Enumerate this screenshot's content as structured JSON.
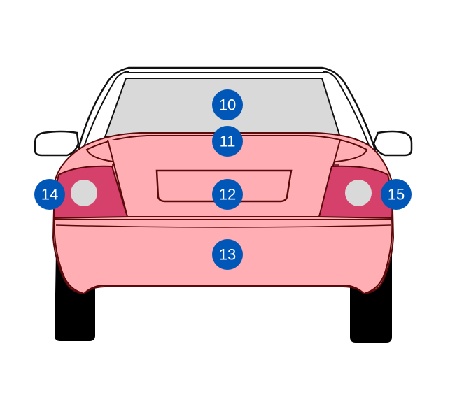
{
  "colors": {
    "body": "#ffafb4",
    "tail_light": "#d6416c",
    "glass": "#d9d9d9",
    "badge": "#0057b8",
    "outline": "#111111",
    "tire": "#000000"
  },
  "zones": [
    {
      "id": "rear-window",
      "number": "10"
    },
    {
      "id": "trunk-lid",
      "number": "11"
    },
    {
      "id": "license-plate-area",
      "number": "12"
    },
    {
      "id": "rear-bumper",
      "number": "13"
    },
    {
      "id": "left-tail-light",
      "number": "14"
    },
    {
      "id": "right-tail-light",
      "number": "15"
    }
  ]
}
